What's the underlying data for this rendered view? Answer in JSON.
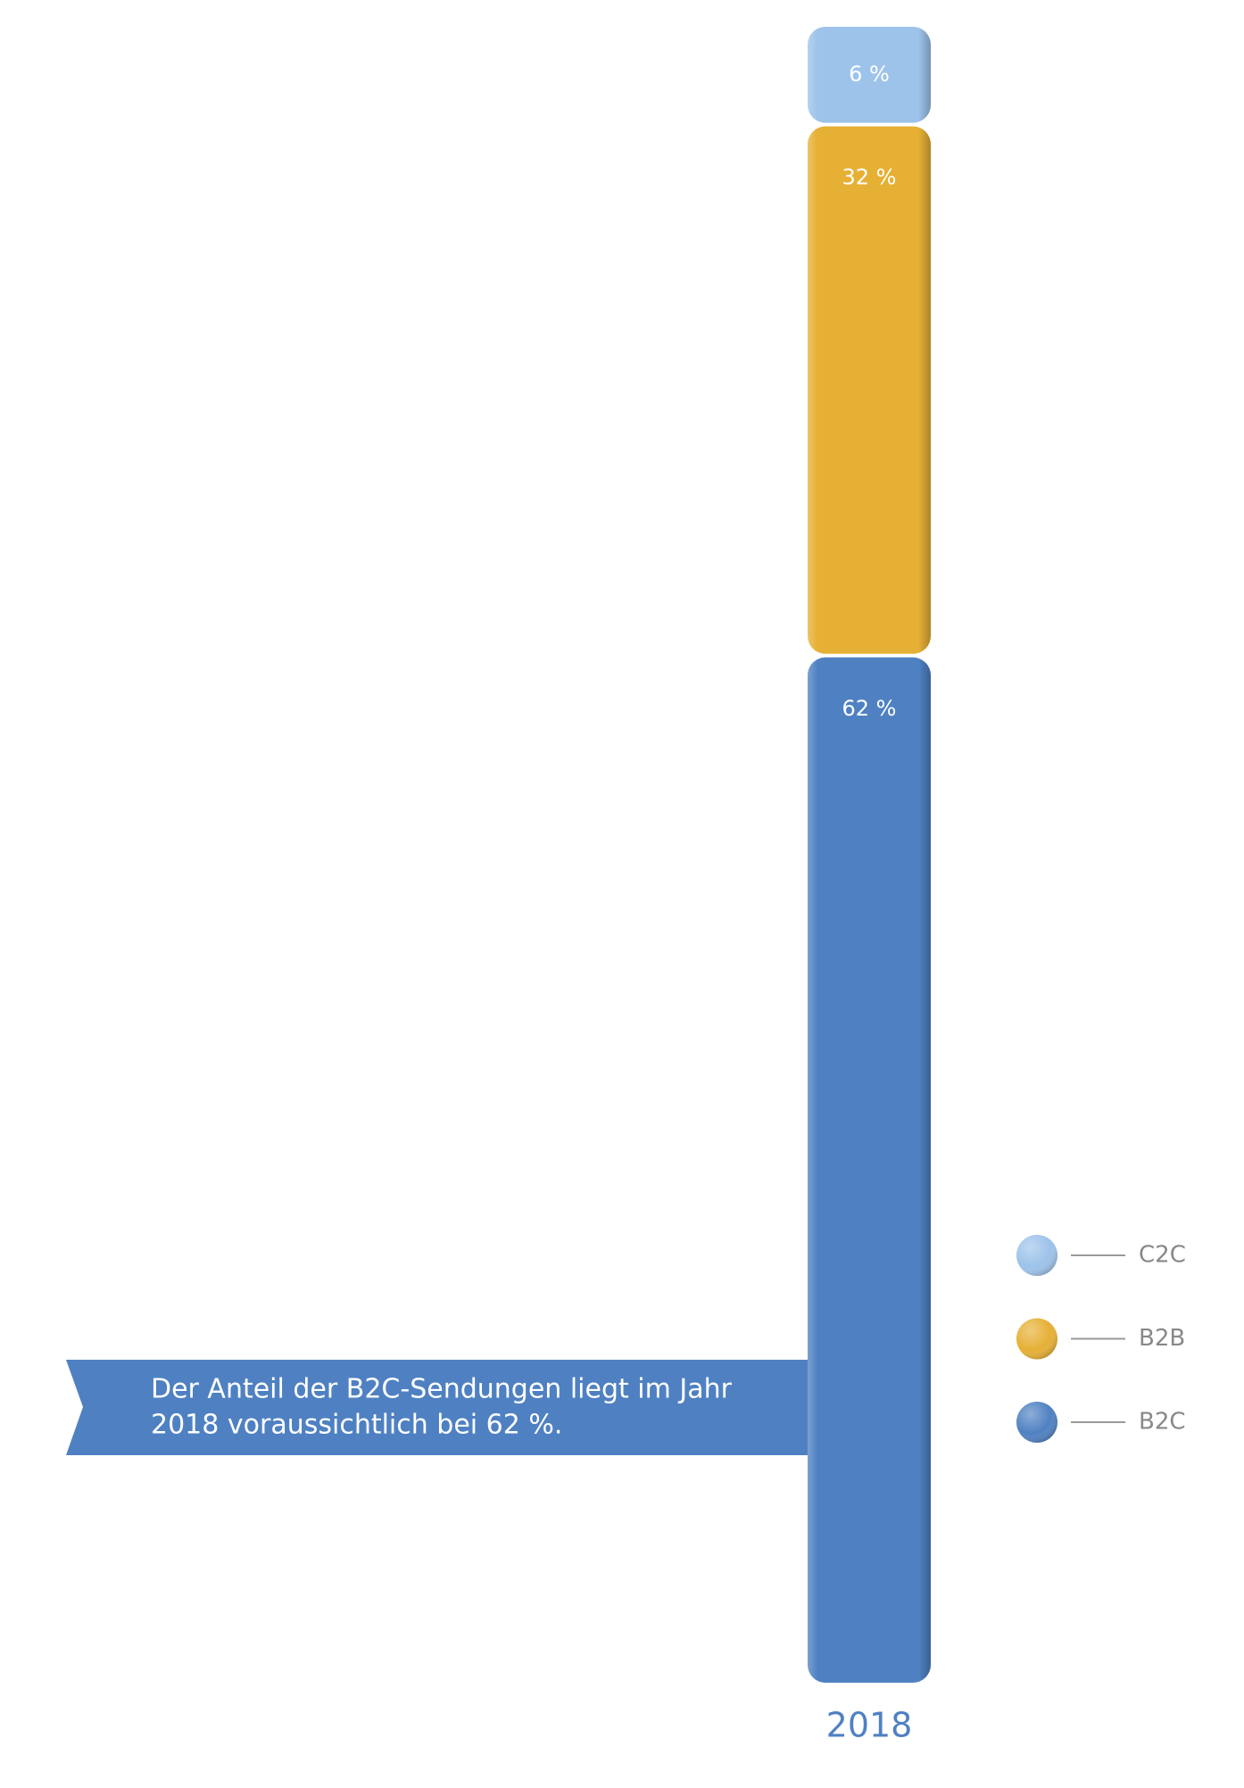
{
  "chart_data": {
    "type": "stacked_bar",
    "categories": [
      "2018"
    ],
    "series": [
      {
        "name": "B2C",
        "color": "#4f81c2",
        "values": [
          62
        ],
        "value_labels": [
          "62 %"
        ]
      },
      {
        "name": "B2B",
        "color": "#e6b035",
        "values": [
          32
        ],
        "value_labels": [
          "32 %"
        ]
      },
      {
        "name": "C2C",
        "color": "#9dc3ea",
        "values": [
          6
        ],
        "value_labels": [
          "6 %"
        ]
      }
    ],
    "annotation": [
      "Der Anteil der B2C-Sendungen liegt im Jahr",
      "2018 voraussichtlich bei 62 %."
    ],
    "legend": "right"
  }
}
